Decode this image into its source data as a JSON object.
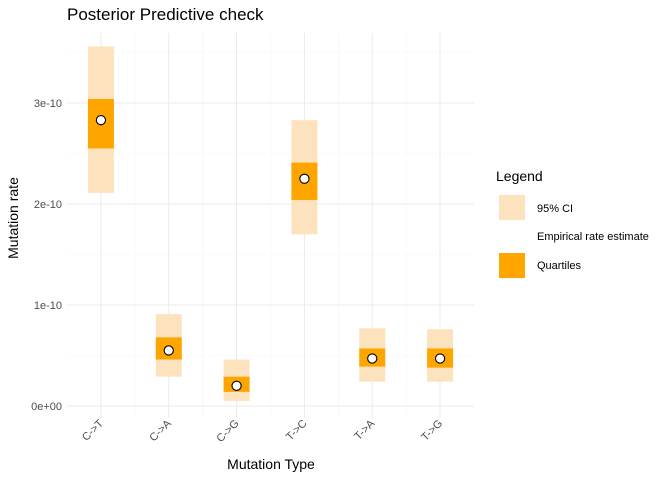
{
  "chart_data": {
    "type": "interval",
    "title": "Posterior Predictive check",
    "xlabel": "Mutation Type",
    "ylabel": "Mutation rate",
    "categories": [
      "C->T",
      "C->A",
      "C->G",
      "T->C",
      "T->A",
      "T->G"
    ],
    "y_ticks": [
      {
        "value": 0,
        "label": "0e+00"
      },
      {
        "value": 1e-10,
        "label": "1e-10"
      },
      {
        "value": 2e-10,
        "label": "2e-10"
      },
      {
        "value": 3e-10,
        "label": "3e-10"
      }
    ],
    "ylim": [
      -5e-12,
      3.6e-10
    ],
    "grid": true,
    "legend_position": "right",
    "legend": {
      "title": "Legend",
      "items": [
        {
          "label": "95% CI",
          "color": "#fde3bd"
        },
        {
          "label": "Empirical rate estimate",
          "color": "#ffffff"
        },
        {
          "label": "Quartiles",
          "color": "#ffa500"
        }
      ]
    },
    "series": [
      {
        "name": "95% CI",
        "kind": "range",
        "low": [
          2.11e-10,
          2.9e-11,
          5e-12,
          1.7e-10,
          2.4e-11,
          2.4e-11
        ],
        "high": [
          3.56e-10,
          9.1e-11,
          4.6e-11,
          2.83e-10,
          7.7e-11,
          7.6e-11
        ],
        "color": "#fde3bd"
      },
      {
        "name": "Quartiles",
        "kind": "range",
        "low": [
          2.55e-10,
          4.6e-11,
          1.4e-11,
          2.04e-10,
          3.9e-11,
          3.8e-11
        ],
        "high": [
          3.04e-10,
          6.8e-11,
          2.9e-11,
          2.41e-10,
          5.7e-11,
          5.7e-11
        ],
        "color": "#ffa500"
      },
      {
        "name": "Empirical rate estimate",
        "kind": "point",
        "values": [
          2.83e-10,
          5.5e-11,
          2e-11,
          2.25e-10,
          4.7e-11,
          4.7e-11
        ],
        "color": "#ffffff"
      }
    ]
  }
}
